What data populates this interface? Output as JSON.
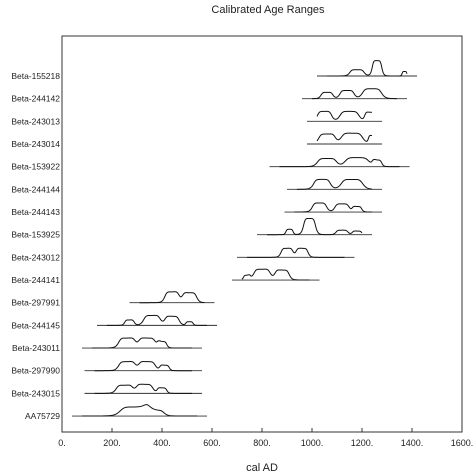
{
  "chart_data": {
    "type": "ridgeline",
    "title": "Calibrated Age Ranges",
    "xlabel": "cal AD",
    "ylabel": "",
    "xlim": [
      0,
      1600
    ],
    "xticks": [
      {
        "value": 0,
        "label": "0."
      },
      {
        "value": 200,
        "label": "200."
      },
      {
        "value": 400,
        "label": "400."
      },
      {
        "value": 600,
        "label": "600."
      },
      {
        "value": 800,
        "label": "800."
      },
      {
        "value": 1000,
        "label": "1000."
      },
      {
        "value": 1200,
        "label": "1200."
      },
      {
        "value": 1400,
        "label": "1400."
      },
      {
        "value": 1600,
        "label": "1600."
      }
    ],
    "grid": false,
    "series": [
      {
        "name": "Beta-155218",
        "range": [
          1020,
          1420
        ],
        "peaks": [
          [
            1180,
            0.35,
            30
          ],
          [
            1260,
            0.85,
            20
          ],
          [
            1370,
            0.25,
            10
          ]
        ]
      },
      {
        "name": "Beta-244142",
        "range": [
          960,
          1380
        ],
        "peaks": [
          [
            1060,
            0.35,
            25
          ],
          [
            1140,
            0.45,
            30
          ],
          [
            1240,
            0.55,
            40
          ]
        ]
      },
      {
        "name": "Beta-243013",
        "range": [
          980,
          1280
        ],
        "peaks": [
          [
            1050,
            0.55,
            30
          ],
          [
            1150,
            0.55,
            40
          ],
          [
            1230,
            0.5,
            20
          ]
        ]
      },
      {
        "name": "Beta-243014",
        "range": [
          980,
          1280
        ],
        "peaks": [
          [
            1060,
            0.55,
            35
          ],
          [
            1160,
            0.6,
            45
          ],
          [
            1240,
            0.45,
            15
          ]
        ]
      },
      {
        "name": "Beta-153922",
        "range": [
          830,
          1390
        ],
        "peaks": [
          [
            1060,
            0.45,
            40
          ],
          [
            1180,
            0.5,
            50
          ],
          [
            1260,
            0.35,
            20
          ]
        ]
      },
      {
        "name": "Beta-244144",
        "range": [
          900,
          1280
        ],
        "peaks": [
          [
            1040,
            0.55,
            35
          ],
          [
            1160,
            0.55,
            45
          ]
        ]
      },
      {
        "name": "Beta-244143",
        "range": [
          890,
          1280
        ],
        "peaks": [
          [
            1030,
            0.5,
            30
          ],
          [
            1120,
            0.45,
            30
          ],
          [
            1180,
            0.3,
            20
          ]
        ]
      },
      {
        "name": "Beta-153925",
        "range": [
          780,
          1240
        ],
        "peaks": [
          [
            910,
            0.3,
            15
          ],
          [
            990,
            0.9,
            25
          ],
          [
            1120,
            0.25,
            25
          ],
          [
            1180,
            0.2,
            20
          ]
        ]
      },
      {
        "name": "Beta-243012",
        "range": [
          700,
          1170
        ],
        "peaks": [
          [
            900,
            0.5,
            25
          ],
          [
            960,
            0.5,
            25
          ]
        ]
      },
      {
        "name": "Beta-244141",
        "range": [
          680,
          1030
        ],
        "peaks": [
          [
            740,
            0.25,
            15
          ],
          [
            800,
            0.6,
            35
          ],
          [
            880,
            0.55,
            30
          ]
        ]
      },
      {
        "name": "Beta-297991",
        "range": [
          270,
          610
        ],
        "peaks": [
          [
            440,
            0.6,
            30
          ],
          [
            510,
            0.55,
            30
          ]
        ]
      },
      {
        "name": "Beta-244145",
        "range": [
          140,
          620
        ],
        "peaks": [
          [
            270,
            0.3,
            20
          ],
          [
            360,
            0.55,
            35
          ],
          [
            440,
            0.5,
            30
          ],
          [
            510,
            0.2,
            15
          ]
        ]
      },
      {
        "name": "Beta-243011",
        "range": [
          80,
          560
        ],
        "peaks": [
          [
            260,
            0.55,
            35
          ],
          [
            340,
            0.55,
            35
          ],
          [
            400,
            0.35,
            20
          ]
        ]
      },
      {
        "name": "Beta-297990",
        "range": [
          90,
          560
        ],
        "peaks": [
          [
            260,
            0.5,
            35
          ],
          [
            340,
            0.5,
            35
          ],
          [
            410,
            0.3,
            20
          ]
        ]
      },
      {
        "name": "Beta-243015",
        "range": [
          90,
          560
        ],
        "peaks": [
          [
            250,
            0.45,
            35
          ],
          [
            330,
            0.5,
            35
          ],
          [
            400,
            0.3,
            20
          ]
        ]
      },
      {
        "name": "AA75729",
        "range": [
          40,
          580
        ],
        "peaks": [
          [
            290,
            0.5,
            60
          ],
          [
            370,
            0.3,
            40
          ]
        ]
      }
    ]
  }
}
